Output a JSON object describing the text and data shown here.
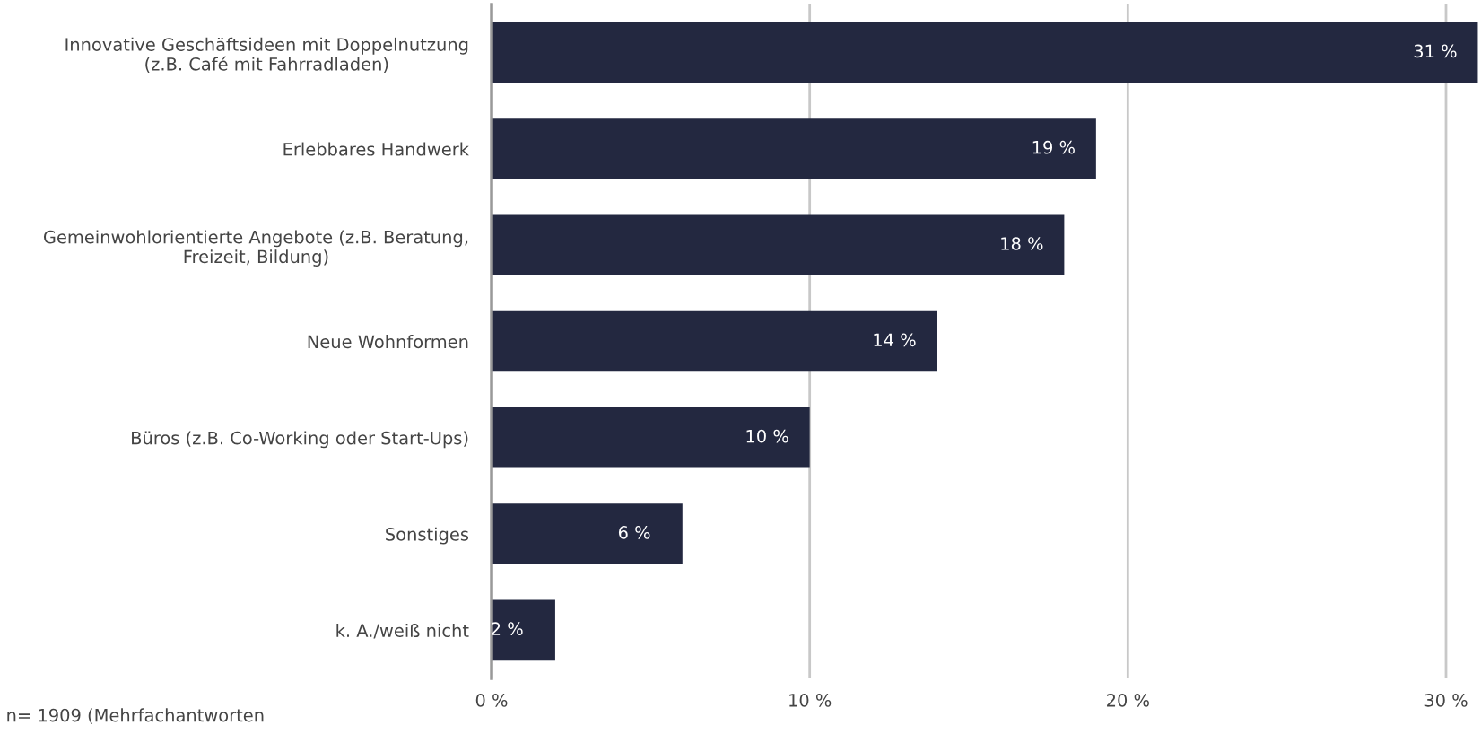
{
  "chart_data": {
    "type": "bar",
    "orientation": "horizontal",
    "categories": [
      "Innovative Geschäftsideen mit Doppelnutzung\n(z.B. Café mit Fahrradladen)",
      "Erlebbares Handwerk",
      "Gemeinwohlorientierte Angebote (z.B. Beratung,\nFreizeit, Bildung)",
      "Neue Wohnformen",
      "Büros (z.B. Co-Working oder Start-Ups)",
      "Sonstiges",
      "k. A./weiß nicht"
    ],
    "values": [
      31,
      19,
      18,
      14,
      10,
      6,
      2
    ],
    "value_labels": [
      "31 %",
      "19 %",
      "18 %",
      "14 %",
      "10 %",
      "6 %",
      "2 %"
    ],
    "color": "#232840",
    "xlim": [
      0,
      31.1
    ],
    "xticks": [
      {
        "value": 0,
        "label": "0 %"
      },
      {
        "value": 10,
        "label": "10 %"
      },
      {
        "value": 20,
        "label": "20 %"
      },
      {
        "value": 30,
        "label": "30 %"
      }
    ],
    "grid": "x",
    "legend": false,
    "annotations": [
      "n= 1909 (Mehrfachantworten"
    ]
  }
}
